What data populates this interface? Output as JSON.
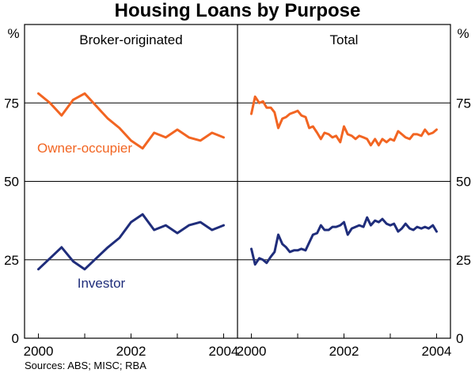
{
  "chart_data": {
    "title": "Housing Loans by Purpose",
    "type": "line",
    "y_unit": "%",
    "ylim": [
      0,
      100
    ],
    "yticks": [
      0,
      25,
      50,
      75
    ],
    "xticks": [
      "2000",
      "2002",
      "2004"
    ],
    "xlim": [
      1999.7,
      2004.3
    ],
    "grid": "horizontal",
    "source": "Sources: ABS; MISC; RBA",
    "colors": {
      "owner": "#f26522",
      "investor": "#1f2d7b"
    },
    "panels": [
      {
        "title": "Broker-originated",
        "series": [
          {
            "name": "Owner-occupier",
            "color": "#f26522",
            "x": [
              2000.0,
              2000.25,
              2000.5,
              2000.75,
              2001.0,
              2001.25,
              2001.5,
              2001.75,
              2002.0,
              2002.25,
              2002.5,
              2002.75,
              2003.0,
              2003.25,
              2003.5,
              2003.75,
              2004.0
            ],
            "y": [
              78,
              75,
              71,
              76,
              78,
              74,
              70,
              67,
              63,
              60.5,
              65.5,
              64,
              66.5,
              64,
              63,
              65.5,
              64
            ]
          },
          {
            "name": "Investor",
            "color": "#1f2d7b",
            "x": [
              2000.0,
              2000.25,
              2000.5,
              2000.75,
              2001.0,
              2001.25,
              2001.5,
              2001.75,
              2002.0,
              2002.25,
              2002.5,
              2002.75,
              2003.0,
              2003.25,
              2003.5,
              2003.75,
              2004.0
            ],
            "y": [
              22,
              25.5,
              29,
              24.5,
              22,
              25.5,
              29,
              32,
              37,
              39.5,
              34.5,
              36,
              33.5,
              36,
              37,
              34.5,
              36
            ]
          }
        ]
      },
      {
        "title": "Total",
        "series": [
          {
            "name": "Owner-occupier",
            "color": "#f26522",
            "x": [
              2000.0,
              2000.08,
              2000.17,
              2000.25,
              2000.33,
              2000.42,
              2000.5,
              2000.58,
              2000.67,
              2000.75,
              2000.83,
              2000.92,
              2001.0,
              2001.08,
              2001.17,
              2001.25,
              2001.33,
              2001.42,
              2001.5,
              2001.58,
              2001.67,
              2001.75,
              2001.83,
              2001.92,
              2002.0,
              2002.08,
              2002.17,
              2002.25,
              2002.33,
              2002.42,
              2002.5,
              2002.58,
              2002.67,
              2002.75,
              2002.83,
              2002.92,
              2003.0,
              2003.08,
              2003.17,
              2003.25,
              2003.33,
              2003.42,
              2003.5,
              2003.58,
              2003.67,
              2003.75,
              2003.83,
              2003.92,
              2004.0
            ],
            "y": [
              71.5,
              77,
              75,
              75.5,
              73.5,
              73.5,
              72,
              67,
              70,
              70.5,
              71.5,
              72,
              72.5,
              71,
              70.5,
              67,
              67.5,
              65.5,
              63.5,
              65.5,
              65,
              64,
              64.5,
              62.5,
              67.5,
              65,
              64.5,
              63.5,
              64.5,
              64,
              63.5,
              61.5,
              63.5,
              61.5,
              63.5,
              62.5,
              63.5,
              63,
              66,
              65,
              64,
              63.5,
              65,
              65,
              64.5,
              66.5,
              65,
              65.5,
              66.5
            ]
          },
          {
            "name": "Investor",
            "color": "#1f2d7b",
            "x": [
              2000.0,
              2000.08,
              2000.17,
              2000.25,
              2000.33,
              2000.42,
              2000.5,
              2000.58,
              2000.67,
              2000.75,
              2000.83,
              2000.92,
              2001.0,
              2001.08,
              2001.17,
              2001.25,
              2001.33,
              2001.42,
              2001.5,
              2001.58,
              2001.67,
              2001.75,
              2001.83,
              2001.92,
              2002.0,
              2002.08,
              2002.17,
              2002.25,
              2002.33,
              2002.42,
              2002.5,
              2002.58,
              2002.67,
              2002.75,
              2002.83,
              2002.92,
              2003.0,
              2003.08,
              2003.17,
              2003.25,
              2003.33,
              2003.42,
              2003.5,
              2003.58,
              2003.67,
              2003.75,
              2003.83,
              2003.92,
              2004.0
            ],
            "y": [
              28.5,
              23.5,
              25.5,
              25,
              24,
              26,
              27.5,
              33,
              30,
              29,
              27.5,
              28,
              28,
              28.5,
              28,
              30.5,
              33,
              33.5,
              36,
              34.5,
              34.5,
              35.5,
              35.5,
              36,
              37,
              33,
              35,
              35.5,
              36,
              35.5,
              38.5,
              36,
              37.5,
              37,
              38,
              36.5,
              36,
              36.5,
              34,
              35,
              36.5,
              35,
              34.5,
              35.5,
              35,
              35.5,
              35,
              36,
              34
            ]
          }
        ]
      }
    ],
    "annotations": [
      {
        "text": "Owner-occupier",
        "panel": 0,
        "color": "#f26522"
      },
      {
        "text": "Investor",
        "panel": 0,
        "color": "#1f2d7b"
      }
    ]
  }
}
